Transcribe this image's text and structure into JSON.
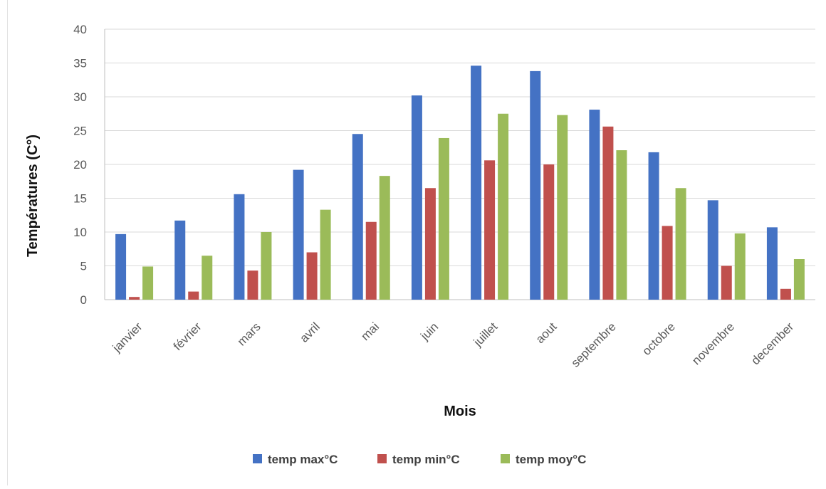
{
  "chart_data": {
    "type": "bar",
    "title": "",
    "xlabel": "Mois",
    "ylabel": "Températures (C°)",
    "ylim": [
      0,
      40
    ],
    "yticks": [
      0,
      5,
      10,
      15,
      20,
      25,
      30,
      35,
      40
    ],
    "grid": true,
    "legend_position": "bottom",
    "categories": [
      "janvier",
      "février",
      "mars",
      "avril",
      "mai",
      "juin",
      "juillet",
      "aout",
      "septembre",
      "octobre",
      "novembre",
      "december"
    ],
    "series": [
      {
        "name": "temp max°C",
        "color": "#4472C4",
        "values": [
          9.7,
          11.7,
          15.6,
          19.2,
          24.5,
          30.2,
          34.6,
          33.8,
          28.1,
          21.8,
          14.7,
          10.7
        ]
      },
      {
        "name": "temp min°C",
        "color": "#C0504D",
        "values": [
          0.4,
          1.2,
          4.3,
          7.0,
          11.5,
          16.5,
          20.6,
          20.0,
          25.6,
          10.9,
          5.0,
          1.6
        ]
      },
      {
        "name": "temp moy°C",
        "color": "#9BBB59",
        "values": [
          4.9,
          6.5,
          10.0,
          13.3,
          18.3,
          23.9,
          27.5,
          27.3,
          22.1,
          16.5,
          9.8,
          6.0
        ]
      }
    ]
  }
}
